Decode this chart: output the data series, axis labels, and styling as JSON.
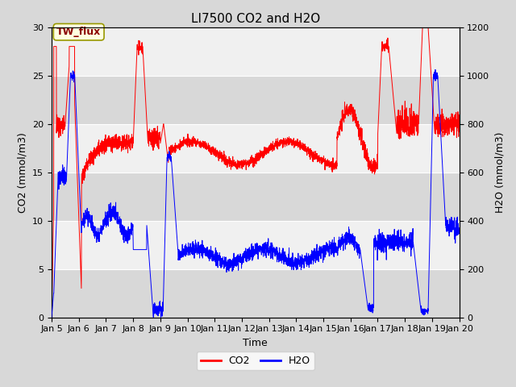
{
  "title": "LI7500 CO2 and H2O",
  "xlabel": "Time",
  "ylabel_left": "CO2 (mmol/m3)",
  "ylabel_right": "H2O (mmol/m3)",
  "xlim": [
    0,
    15
  ],
  "ylim_left": [
    0,
    30
  ],
  "ylim_right": [
    0,
    1200
  ],
  "x_tick_labels": [
    "Jan 5",
    "Jan 6",
    "Jan 7",
    "Jan 8",
    "Jan 9",
    "Jan 10",
    "Jan 11",
    "Jan 12",
    "Jan 13",
    "Jan 14",
    "Jan 15",
    "Jan 16",
    "Jan 17",
    "Jan 18",
    "Jan 19",
    "Jan 20"
  ],
  "legend_label1": "CO2",
  "legend_label2": "H2O",
  "line_color1": "red",
  "line_color2": "blue",
  "annotation_text": "TW_flux",
  "bg_color": "#d8d8d8",
  "inner_bg_color": "#e8e8e8",
  "band_color_light": "#f0f0f0",
  "band_color_dark": "#d8d8d8",
  "title_fontsize": 11,
  "axis_label_fontsize": 9,
  "tick_label_fontsize": 8,
  "legend_fontsize": 9
}
